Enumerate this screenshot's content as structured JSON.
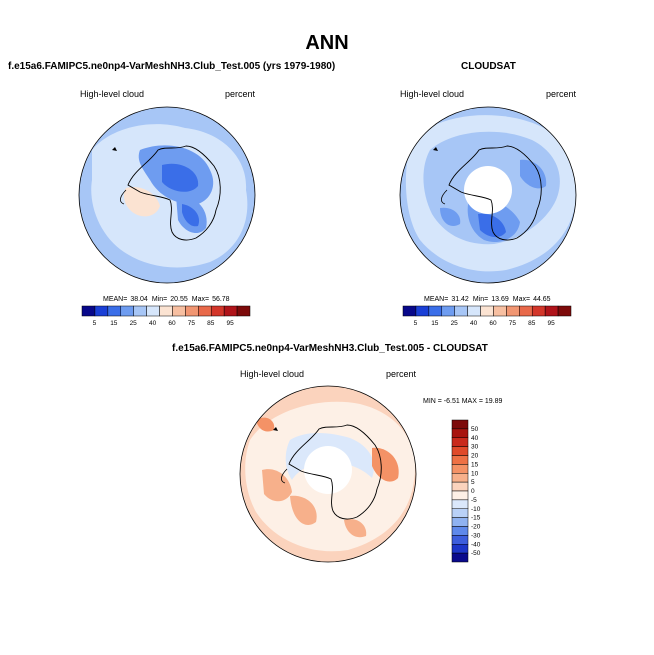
{
  "main_title": "ANN",
  "chart_data": [
    {
      "type": "polar_contour_map",
      "title": "f.e15a6.FAMIPC5.ne0np4-VarMeshNH3.Club_Test.005 (yrs 1979-1980)",
      "left_label": "High-level cloud",
      "right_label": "percent",
      "stats": {
        "mean_label": "MEAN=",
        "mean": "38.04",
        "min_label": "Min=",
        "min": "20.55",
        "max_label": "Max=",
        "max": "56.78"
      },
      "colorbar_levels": [
        "5",
        "15",
        "25",
        "40",
        "60",
        "75",
        "85",
        "95"
      ],
      "colorbar_colors": [
        "#08088a",
        "#1a3fd6",
        "#3a6ee8",
        "#6e9cf0",
        "#a7c6f6",
        "#d6e6fb",
        "#fbe3d2",
        "#f7bfa1",
        "#f19672",
        "#e8694a",
        "#d3362a",
        "#b0141a",
        "#7d0a0a"
      ]
    },
    {
      "type": "polar_contour_map",
      "title": "CLOUDSAT",
      "left_label": "High-level cloud",
      "right_label": "percent",
      "stats": {
        "mean_label": "MEAN=",
        "mean": "31.42",
        "min_label": "Min=",
        "min": "13.69",
        "max_label": "Max=",
        "max": "44.65"
      },
      "colorbar_levels": [
        "5",
        "15",
        "25",
        "40",
        "60",
        "75",
        "85",
        "95"
      ],
      "colorbar_colors": [
        "#08088a",
        "#1a3fd6",
        "#3a6ee8",
        "#6e9cf0",
        "#a7c6f6",
        "#d6e6fb",
        "#fbe3d2",
        "#f7bfa1",
        "#f19672",
        "#e8694a",
        "#d3362a",
        "#b0141a",
        "#7d0a0a"
      ]
    },
    {
      "type": "polar_contour_map",
      "title": "f.e15a6.FAMIPC5.ne0np4-VarMeshNH3.Club_Test.005 - CLOUDSAT",
      "left_label": "High-level cloud",
      "right_label": "percent",
      "stats_label": "MIN = -6.51 MAX = 19.89",
      "colorbar_levels": [
        "50",
        "40",
        "30",
        "20",
        "15",
        "10",
        "5",
        "0",
        "-5",
        "-10",
        "-15",
        "-20",
        "-30",
        "-40",
        "-50"
      ],
      "colorbar_colors": [
        "#7d0a0a",
        "#a8140f",
        "#c92a1c",
        "#e04a2a",
        "#ee7145",
        "#f49266",
        "#f7b08b",
        "#fbd3bd",
        "#fdf0e6",
        "#dbe8fb",
        "#b9d1f7",
        "#8fb2f1",
        "#5f89ea",
        "#3d5edc",
        "#1d36c8",
        "#0a0a8c"
      ]
    }
  ]
}
